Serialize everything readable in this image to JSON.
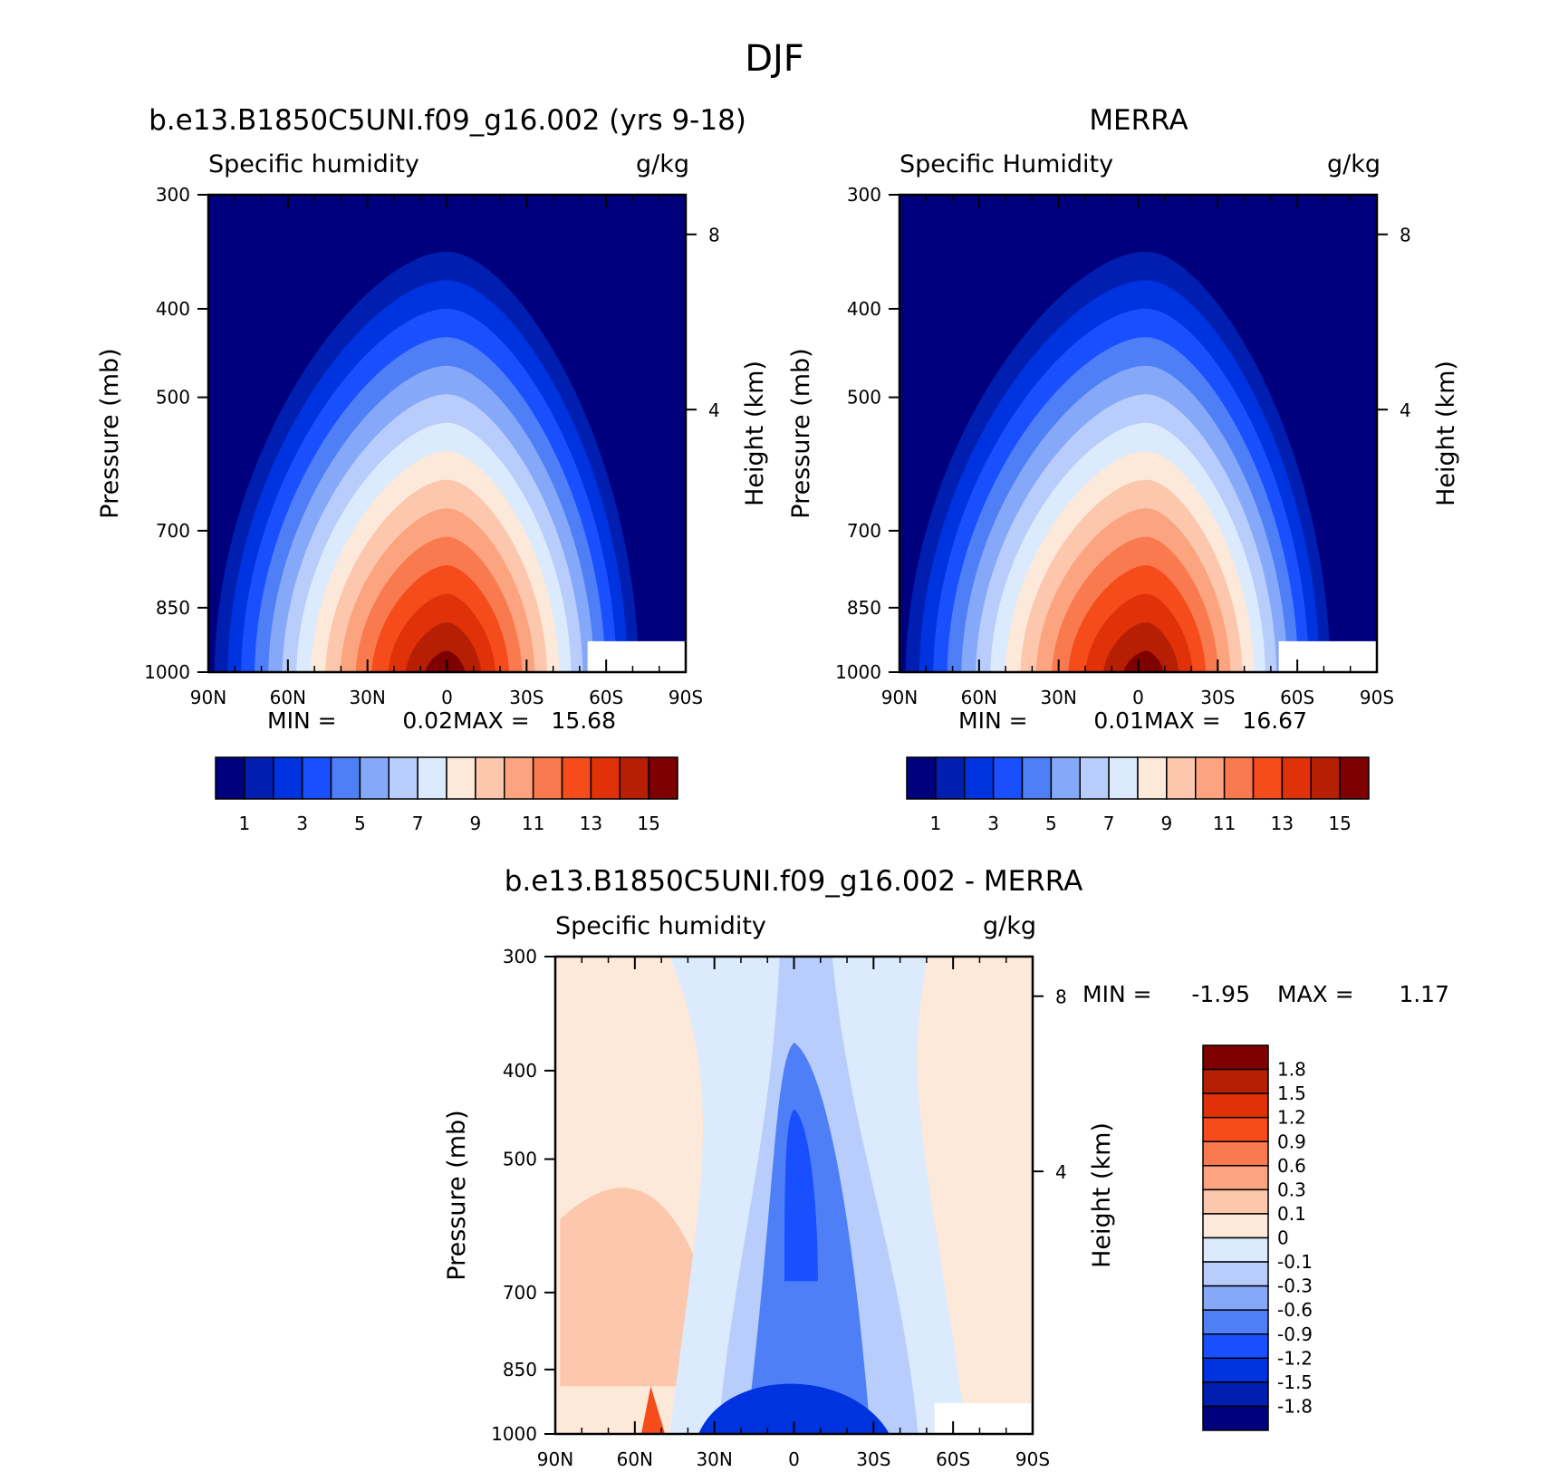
{
  "figure_title": "DJF",
  "chart_data": [
    {
      "type": "heatmap",
      "title": "b.e13.B1850C5UNI.f09_g16.002 (yrs 9-18)",
      "field_label": "Specific humidity",
      "units": "g/kg",
      "ylabel": "Pressure (mb)",
      "ylabel_right": "Height (km)",
      "x_ticks": [
        "90N",
        "60N",
        "30N",
        "0",
        "30S",
        "60S",
        "90S"
      ],
      "x_range": [
        90,
        -90
      ],
      "y_ticks": [
        300,
        400,
        500,
        700,
        850,
        1000
      ],
      "y_range": [
        300,
        1000
      ],
      "y_scale": "log",
      "right_ticks": [
        "8",
        "4"
      ],
      "min_label": "MIN =",
      "max_label": "MAX =",
      "min": "0.02",
      "max": "15.68",
      "levels": [
        "1",
        "3",
        "5",
        "7",
        "9",
        "11",
        "13",
        "15"
      ],
      "colorbar": [
        "#00007f",
        "#001fb0",
        "#0033e0",
        "#1a4fff",
        "#4e7ff7",
        "#86a8f8",
        "#b8cdfb",
        "#dceafd",
        "#fde9d9",
        "#fcc7ac",
        "#fba47f",
        "#f97a4f",
        "#f64c1c",
        "#e03108",
        "#b71f04",
        "#7f0000"
      ],
      "peak_lat": 0,
      "peak_value": 15.68
    },
    {
      "type": "heatmap",
      "title": "MERRA",
      "field_label": "Specific Humidity",
      "units": "g/kg",
      "ylabel": "Pressure (mb)",
      "ylabel_right": "Height (km)",
      "x_ticks": [
        "90N",
        "60N",
        "30N",
        "0",
        "30S",
        "60S",
        "90S"
      ],
      "x_range": [
        90,
        -90
      ],
      "y_ticks": [
        300,
        400,
        500,
        700,
        850,
        1000
      ],
      "y_range": [
        300,
        1000
      ],
      "y_scale": "log",
      "right_ticks": [
        "8",
        "4"
      ],
      "min_label": "MIN =",
      "max_label": "MAX =",
      "min": "0.01",
      "max": "16.67",
      "levels": [
        "1",
        "3",
        "5",
        "7",
        "9",
        "11",
        "13",
        "15"
      ],
      "colorbar": [
        "#00007f",
        "#001fb0",
        "#0033e0",
        "#1a4fff",
        "#4e7ff7",
        "#86a8f8",
        "#b8cdfb",
        "#dceafd",
        "#fde9d9",
        "#fcc7ac",
        "#fba47f",
        "#f97a4f",
        "#f64c1c",
        "#e03108",
        "#b71f04",
        "#7f0000"
      ],
      "peak_lat": -3,
      "peak_value": 16.67
    },
    {
      "type": "heatmap",
      "title": "b.e13.B1850C5UNI.f09_g16.002 - MERRA",
      "field_label": "Specific humidity",
      "units": "g/kg",
      "ylabel": "Pressure (mb)",
      "ylabel_right": "Height (km)",
      "x_ticks": [
        "90N",
        "60N",
        "30N",
        "0",
        "30S",
        "60S",
        "90S"
      ],
      "x_range": [
        90,
        -90
      ],
      "y_ticks": [
        300,
        400,
        500,
        700,
        850,
        1000
      ],
      "y_range": [
        300,
        1000
      ],
      "y_scale": "log",
      "right_ticks": [
        "8",
        "4"
      ],
      "min_label": "MIN =",
      "max_label": "MAX =",
      "min": "-1.95",
      "max": "1.17",
      "levels": [
        "1.8",
        "1.5",
        "1.2",
        "0.9",
        "0.6",
        "0.3",
        "0.1",
        "0",
        "-0.1",
        "-0.3",
        "-0.6",
        "-0.9",
        "-1.2",
        "-1.5",
        "-1.8"
      ],
      "colorbar_top_to_bottom": [
        "#7f0000",
        "#b71f04",
        "#e03108",
        "#f64c1c",
        "#f97a4f",
        "#fba47f",
        "#fcc7ac",
        "#fde9d9",
        "#dceafd",
        "#b8cdfb",
        "#86a8f8",
        "#4e7ff7",
        "#1a4fff",
        "#0033e0",
        "#001fb0",
        "#00007f"
      ]
    }
  ]
}
